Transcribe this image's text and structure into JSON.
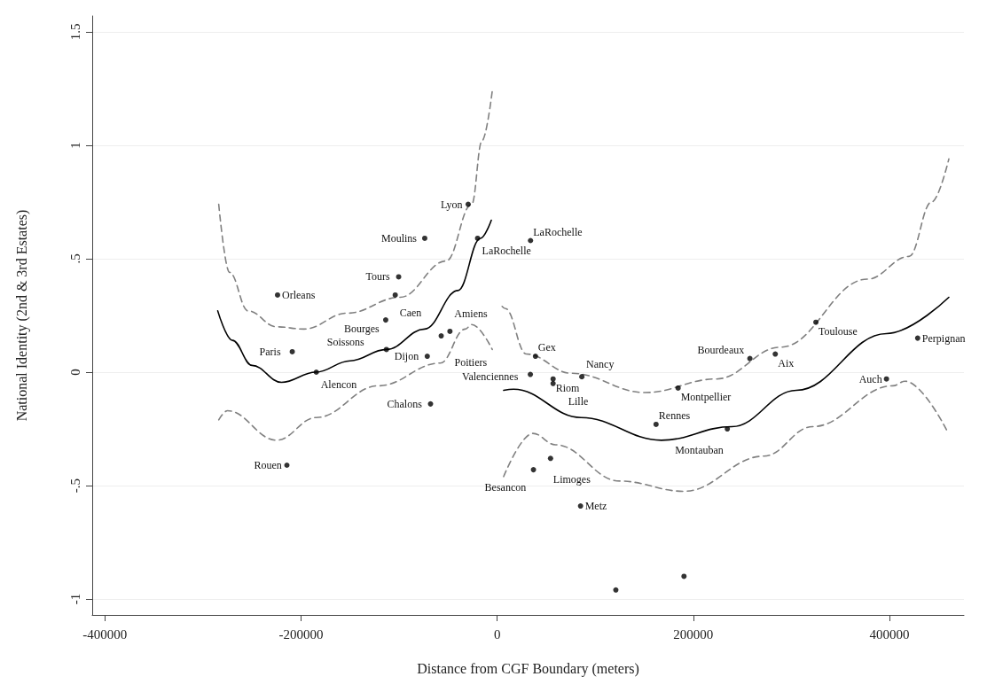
{
  "chart_data": {
    "type": "scatter",
    "xlabel": "Distance from CGF Boundary (meters)",
    "ylabel": "National Identity (2nd & 3rd Estates)",
    "xlim": [
      -413000,
      476000
    ],
    "ylim": [
      -1.07,
      1.57
    ],
    "xticks": [
      -400000,
      -200000,
      0,
      200000,
      400000
    ],
    "yticks": [
      {
        "value": -1,
        "label": "-1"
      },
      {
        "value": -0.5,
        "label": "-.5"
      },
      0,
      {
        "value": 0.5,
        "label": ".5"
      },
      1,
      1.5
    ],
    "grid": "y",
    "marker": "circle",
    "series": [
      {
        "color": "#000000",
        "x": [
          -29600,
          -20000,
          -73900,
          -100500,
          -104000,
          -224000,
          -113700,
          -48200,
          -57100,
          -209000,
          -113000,
          -71300,
          -184500,
          -68000,
          -214500,
          34000,
          39000,
          33800,
          57000,
          57000,
          86300,
          184500,
          162000,
          234700,
          257700,
          283600,
          397000,
          428800,
          325000,
          54400,
          37000,
          85000,
          121000,
          190500
        ],
        "values": [
          0.74,
          0.59,
          0.59,
          0.42,
          0.34,
          0.34,
          0.23,
          0.18,
          0.16,
          0.09,
          0.1,
          0.07,
          0.0,
          -0.14,
          -0.41,
          0.58,
          0.07,
          -0.01,
          -0.03,
          -0.05,
          -0.02,
          -0.07,
          -0.23,
          -0.25,
          0.06,
          0.08,
          -0.03,
          0.15,
          0.22,
          -0.38,
          -0.43,
          -0.59,
          -0.96,
          -0.9
        ]
      },
      {
        "type": "line",
        "marker": "none",
        "color": "#000000",
        "line_style": "solid",
        "x": [
          -285000,
          -270000,
          -250000,
          -220000,
          -185000,
          -150000,
          -113000,
          -74000,
          -40000,
          -17000,
          -6000
        ],
        "values": [
          0.27,
          0.14,
          0.03,
          -0.045,
          0.0,
          0.05,
          0.1,
          0.19,
          0.36,
          0.59,
          0.67
        ]
      },
      {
        "type": "line",
        "marker": "none",
        "color": "#808080",
        "line_style": "dashed",
        "x": [
          -284000,
          -273000,
          -254000,
          -225000,
          -197000,
          -153000,
          -99000,
          -52000,
          -26000,
          -15500,
          -5000
        ],
        "values": [
          0.74,
          0.44,
          0.27,
          0.2,
          0.19,
          0.26,
          0.33,
          0.49,
          0.74,
          1.02,
          1.24
        ]
      },
      {
        "type": "line",
        "marker": "none",
        "color": "#808080",
        "line_style": "dashed",
        "x": [
          -284000,
          -275000,
          -225000,
          -184500,
          -121000,
          -58000,
          -32600,
          -26000,
          -5000
        ],
        "values": [
          -0.21,
          -0.17,
          -0.3,
          -0.2,
          -0.06,
          0.04,
          0.19,
          0.21,
          0.1
        ]
      },
      {
        "type": "line",
        "marker": "none",
        "color": "#000000",
        "line_style": "solid",
        "x": [
          6600,
          16700,
          85400,
          167500,
          239400,
          305000,
          397000,
          460600
        ],
        "values": [
          -0.08,
          -0.075,
          -0.2,
          -0.3,
          -0.24,
          -0.08,
          0.17,
          0.33
        ]
      },
      {
        "type": "line",
        "marker": "none",
        "color": "#808080",
        "line_style": "dashed",
        "x": [
          5000,
          8400,
          29700,
          75700,
          150900,
          223400,
          289000,
          377500,
          420000,
          443000,
          460600
        ],
        "values": [
          0.29,
          0.28,
          0.08,
          -0.005,
          -0.09,
          -0.03,
          0.11,
          0.41,
          0.51,
          0.75,
          0.94
        ]
      },
      {
        "type": "line",
        "marker": "none",
        "color": "#808080",
        "line_style": "dashed",
        "x": [
          6600,
          36400,
          59400,
          125000,
          190500,
          272000,
          321600,
          403600,
          416000,
          459000
        ],
        "values": [
          -0.46,
          -0.27,
          -0.32,
          -0.48,
          -0.525,
          -0.37,
          -0.24,
          -0.06,
          -0.04,
          -0.26
        ]
      }
    ],
    "annotations": [
      {
        "text": "Lyon",
        "x": -29600,
        "y": 0.74
      },
      {
        "text": "LaRochelle",
        "x": -20000,
        "y": 0.59
      },
      {
        "text": "Moulins",
        "x": -73900,
        "y": 0.59
      },
      {
        "text": "Tours",
        "x": -100500,
        "y": 0.42
      },
      {
        "text": "Caen",
        "x": -104000,
        "y": 0.34
      },
      {
        "text": "Orleans",
        "x": -224000,
        "y": 0.34
      },
      {
        "text": "Bourges",
        "x": -113700,
        "y": 0.23
      },
      {
        "text": "Amiens",
        "x": -48200,
        "y": 0.18
      },
      {
        "text": "Poitiers",
        "x": -57100,
        "y": 0.16
      },
      {
        "text": "Paris",
        "x": -209000,
        "y": 0.09
      },
      {
        "text": "Soissons",
        "x": -113000,
        "y": 0.1
      },
      {
        "text": "Dijon",
        "x": -71300,
        "y": 0.07
      },
      {
        "text": "Alencon",
        "x": -184500,
        "y": 0.0
      },
      {
        "text": "Chalons",
        "x": -68000,
        "y": -0.14
      },
      {
        "text": "Rouen",
        "x": -214500,
        "y": -0.41
      },
      {
        "text": "LaRochelle",
        "x": 34000,
        "y": 0.58
      },
      {
        "text": "Gex",
        "x": 39000,
        "y": 0.07
      },
      {
        "text": "Valenciennes",
        "x": 33800,
        "y": -0.01
      },
      {
        "text": "Riom",
        "x": 57000,
        "y": -0.03
      },
      {
        "text": "Lille",
        "x": 57000,
        "y": -0.05
      },
      {
        "text": "Nancy",
        "x": 86300,
        "y": -0.02
      },
      {
        "text": "Montpellier",
        "x": 184500,
        "y": -0.07
      },
      {
        "text": "Rennes",
        "x": 162000,
        "y": -0.23
      },
      {
        "text": "Montauban",
        "x": 234700,
        "y": -0.25
      },
      {
        "text": "Bourdeaux",
        "x": 257700,
        "y": 0.06
      },
      {
        "text": "Aix",
        "x": 283600,
        "y": 0.08
      },
      {
        "text": "Auch",
        "x": 397000,
        "y": -0.03
      },
      {
        "text": "Perpignan",
        "x": 428800,
        "y": 0.15
      },
      {
        "text": "Toulouse",
        "x": 325000,
        "y": 0.22
      },
      {
        "text": "Limoges",
        "x": 54400,
        "y": -0.38
      },
      {
        "text": "Besancon",
        "x": 37000,
        "y": -0.43
      },
      {
        "text": "Metz",
        "x": 85000,
        "y": -0.59
      }
    ]
  }
}
